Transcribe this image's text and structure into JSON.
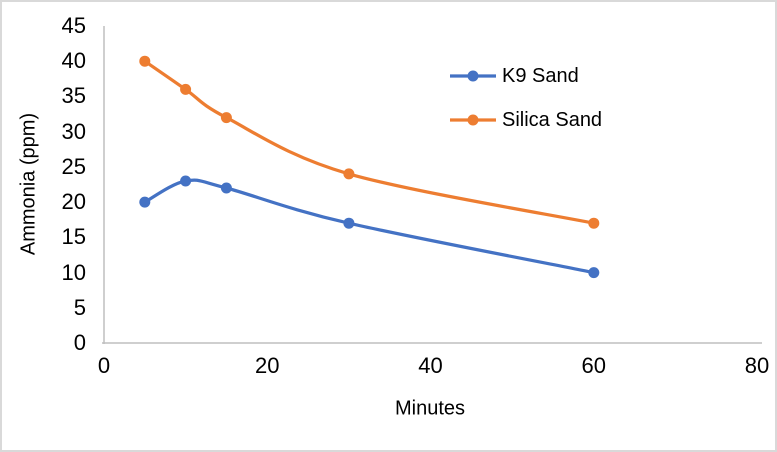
{
  "chart_data": {
    "type": "line",
    "title": "",
    "xlabel": "Minutes",
    "ylabel": "Ammonia (ppm)",
    "xlim": [
      0,
      80
    ],
    "ylim": [
      0,
      45
    ],
    "xticks": [
      0,
      20,
      40,
      60,
      80
    ],
    "yticks": [
      0,
      5,
      10,
      15,
      20,
      25,
      30,
      35,
      40,
      45
    ],
    "x": [
      5,
      10,
      15,
      30,
      60
    ],
    "series": [
      {
        "name": "K9 Sand",
        "color": "#4472C4",
        "values": [
          20,
          23,
          22,
          17,
          10
        ]
      },
      {
        "name": "Silica Sand",
        "color": "#ED7D31",
        "values": [
          40,
          36,
          32,
          24,
          17
        ]
      }
    ],
    "legend_position": "inside-top-right",
    "grid": false,
    "smooth": true,
    "marker": "circle",
    "axis_color": "#BFBFBF",
    "text_color": "#000000",
    "background": "#FFFFFF",
    "border_color": "#D9D9D9"
  }
}
